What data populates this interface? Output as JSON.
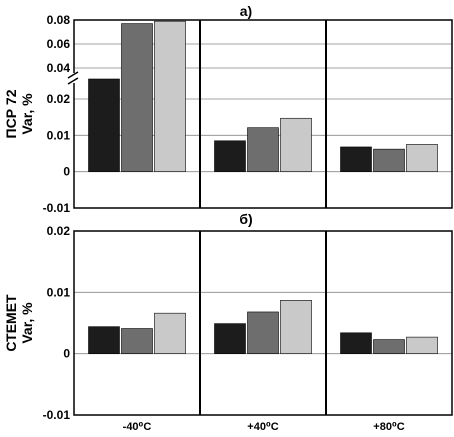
{
  "colors": {
    "series": [
      "#1c1c1c",
      "#6e6e6e",
      "#c9c9c9"
    ],
    "axis": "#000000",
    "grid": "#888888"
  },
  "chart_data": [
    {
      "type": "bar",
      "panel_label": "а)",
      "ylabel_line1": "ПСР 72",
      "ylabel_line2": "Var, %",
      "axis_break": true,
      "y_ticks_lower": [
        "-0.01",
        "0",
        "0.01",
        "0.02"
      ],
      "y_ticks_upper": [
        "0.04",
        "0.06",
        "0.08"
      ],
      "ylim_lower": [
        -0.01,
        0.02
      ],
      "ylim_upper": [
        0.04,
        0.08
      ],
      "x_tick_labels": [
        "-40⁰C",
        "+40⁰C",
        "+80⁰C"
      ],
      "grid": true,
      "series": [
        {
          "values": [
            0.036,
            0.0085,
            0.0068
          ]
        },
        {
          "values": [
            0.077,
            0.0121,
            0.0062
          ]
        },
        {
          "values": [
            0.079,
            0.0147,
            0.0075
          ]
        }
      ]
    },
    {
      "type": "bar",
      "panel_label": "б)",
      "ylabel_line1": "СТЕМЕТ",
      "ylabel_line2": "Var, %",
      "y_ticks": [
        "-0.01",
        "0",
        "0.01",
        "0.02"
      ],
      "ylim": [
        -0.01,
        0.02
      ],
      "x_tick_labels": [
        "-40⁰C",
        "+40⁰C",
        "+80⁰C"
      ],
      "grid": true,
      "series": [
        {
          "values": [
            0.0044,
            0.0049,
            0.0034
          ]
        },
        {
          "values": [
            0.0041,
            0.0068,
            0.0023
          ]
        },
        {
          "values": [
            0.0066,
            0.0087,
            0.0027
          ]
        }
      ]
    }
  ]
}
